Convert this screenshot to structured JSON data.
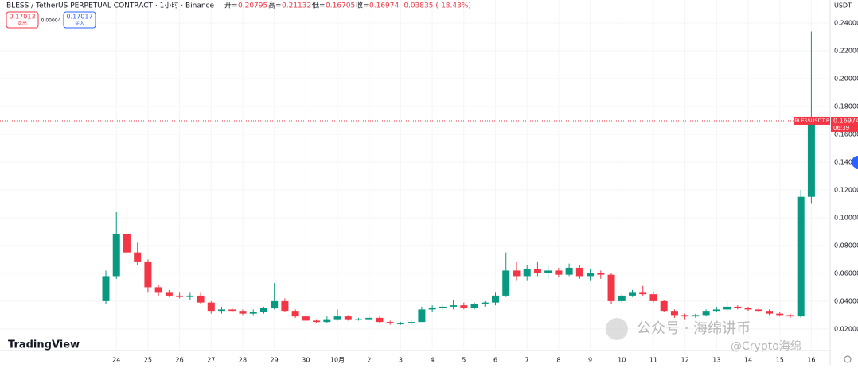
{
  "chart_data": {
    "type": "candlestick",
    "title": "BLESS / TetherUS PERPETUAL CONTRACT · 1小时 · Binance",
    "stats": [
      {
        "label": "开=",
        "value": "0.20795"
      },
      {
        "label": "高=",
        "value": "0.21132"
      },
      {
        "label": "低=",
        "value": "0.16705"
      },
      {
        "label": "收=",
        "value": "0.16974"
      }
    ],
    "change": "-0.03835 (-18.43%)",
    "sell": {
      "price": "0.17013",
      "label": "卖出"
    },
    "spread": "0.00004",
    "buy": {
      "price": "0.17017",
      "label": "买入"
    },
    "currency": "USDT",
    "up_color": "#089981",
    "down_color": "#f23645",
    "open": [
      0.04,
      0.058,
      0.088,
      0.075,
      0.068,
      0.05,
      0.046,
      0.044,
      0.043,
      0.044,
      0.039,
      0.033,
      0.034,
      0.033,
      0.031,
      0.032,
      0.035,
      0.04,
      0.033,
      0.029,
      0.026,
      0.025,
      0.027,
      0.029,
      0.027,
      0.027,
      0.028,
      0.025,
      0.024,
      0.024,
      0.025,
      0.034,
      0.035,
      0.036,
      0.037,
      0.035,
      0.038,
      0.039,
      0.044,
      0.062,
      0.058,
      0.063,
      0.06,
      0.062,
      0.059,
      0.064,
      0.058,
      0.06,
      0.059,
      0.04,
      0.044,
      0.046,
      0.045,
      0.04,
      0.033,
      0.03,
      0.029,
      0.03,
      0.033,
      0.034,
      0.036,
      0.035,
      0.034,
      0.033,
      0.031,
      0.03,
      0.029,
      0.115
    ],
    "high": [
      0.062,
      0.104,
      0.107,
      0.082,
      0.07,
      0.052,
      0.048,
      0.046,
      0.046,
      0.046,
      0.04,
      0.036,
      0.035,
      0.034,
      0.034,
      0.036,
      0.053,
      0.042,
      0.034,
      0.03,
      0.027,
      0.029,
      0.034,
      0.03,
      0.028,
      0.029,
      0.029,
      0.026,
      0.025,
      0.026,
      0.036,
      0.037,
      0.038,
      0.041,
      0.039,
      0.039,
      0.04,
      0.046,
      0.075,
      0.068,
      0.066,
      0.068,
      0.065,
      0.064,
      0.067,
      0.066,
      0.063,
      0.062,
      0.06,
      0.045,
      0.048,
      0.051,
      0.047,
      0.041,
      0.034,
      0.031,
      0.031,
      0.034,
      0.036,
      0.04,
      0.037,
      0.036,
      0.035,
      0.034,
      0.032,
      0.031,
      0.12,
      0.234
    ],
    "low": [
      0.038,
      0.056,
      0.07,
      0.066,
      0.046,
      0.044,
      0.043,
      0.042,
      0.041,
      0.038,
      0.031,
      0.031,
      0.032,
      0.03,
      0.03,
      0.031,
      0.034,
      0.032,
      0.028,
      0.025,
      0.024,
      0.024,
      0.026,
      0.026,
      0.026,
      0.026,
      0.024,
      0.023,
      0.023,
      0.023,
      0.025,
      0.032,
      0.033,
      0.034,
      0.034,
      0.034,
      0.036,
      0.037,
      0.043,
      0.055,
      0.055,
      0.058,
      0.056,
      0.057,
      0.058,
      0.056,
      0.055,
      0.056,
      0.038,
      0.039,
      0.043,
      0.044,
      0.039,
      0.032,
      0.028,
      0.027,
      0.028,
      0.029,
      0.032,
      0.033,
      0.034,
      0.033,
      0.032,
      0.03,
      0.029,
      0.028,
      0.028,
      0.11
    ],
    "close": [
      0.058,
      0.088,
      0.075,
      0.068,
      0.05,
      0.046,
      0.044,
      0.043,
      0.044,
      0.039,
      0.033,
      0.034,
      0.033,
      0.031,
      0.032,
      0.035,
      0.04,
      0.033,
      0.029,
      0.026,
      0.025,
      0.027,
      0.029,
      0.027,
      0.027,
      0.028,
      0.025,
      0.024,
      0.024,
      0.025,
      0.034,
      0.035,
      0.036,
      0.037,
      0.035,
      0.038,
      0.039,
      0.044,
      0.062,
      0.058,
      0.063,
      0.06,
      0.062,
      0.059,
      0.064,
      0.058,
      0.06,
      0.059,
      0.04,
      0.044,
      0.046,
      0.045,
      0.04,
      0.033,
      0.03,
      0.029,
      0.03,
      0.033,
      0.034,
      0.036,
      0.035,
      0.034,
      0.033,
      0.031,
      0.03,
      0.029,
      0.115,
      0.16974
    ],
    "ylim": [
      0.0045,
      0.2566
    ],
    "yticks": [
      {
        "value": 0.02,
        "label": "0.02000"
      },
      {
        "value": 0.04,
        "label": "0.04000"
      },
      {
        "value": 0.06,
        "label": "0.06000"
      },
      {
        "value": 0.08,
        "label": "0.08000"
      },
      {
        "value": 0.1,
        "label": "0.10000"
      },
      {
        "value": 0.12,
        "label": "0.12000"
      },
      {
        "value": 0.14,
        "label": "0.14000"
      },
      {
        "value": 0.16,
        "label": "0.16000"
      },
      {
        "value": 0.18,
        "label": "0.18000"
      },
      {
        "value": 0.2,
        "label": "0.20000"
      },
      {
        "value": 0.22,
        "label": "0.22000"
      },
      {
        "value": 0.24,
        "label": "0.24000"
      }
    ],
    "xticks": [
      {
        "value": 1,
        "label": "24"
      },
      {
        "value": 4,
        "label": "25"
      },
      {
        "value": 7,
        "label": "26"
      },
      {
        "value": 10,
        "label": "27"
      },
      {
        "value": 13,
        "label": "28"
      },
      {
        "value": 16,
        "label": "29"
      },
      {
        "value": 19,
        "label": "30"
      },
      {
        "value": 22,
        "label": "10月"
      },
      {
        "value": 25,
        "label": "2"
      },
      {
        "value": 28,
        "label": "3"
      },
      {
        "value": 31,
        "label": "4"
      },
      {
        "value": 34,
        "label": "5"
      },
      {
        "value": 37,
        "label": "6"
      },
      {
        "value": 40,
        "label": "7"
      },
      {
        "value": 43,
        "label": "8"
      },
      {
        "value": 46,
        "label": "9"
      },
      {
        "value": 49,
        "label": "10"
      },
      {
        "value": 52,
        "label": "11"
      },
      {
        "value": 55,
        "label": "12"
      },
      {
        "value": 58,
        "label": "13"
      },
      {
        "value": 61,
        "label": "14"
      },
      {
        "value": 64,
        "label": "15"
      },
      {
        "value": 67,
        "label": "16"
      }
    ],
    "grid": true,
    "last_price": {
      "symbol": "BLESSUSDT.P",
      "value": 0.16974,
      "timer": "06:39"
    },
    "watermarks": {
      "brand": "TradingView",
      "account": "公众号 · 海绵讲币",
      "handle": "@Crypto海绵"
    }
  }
}
